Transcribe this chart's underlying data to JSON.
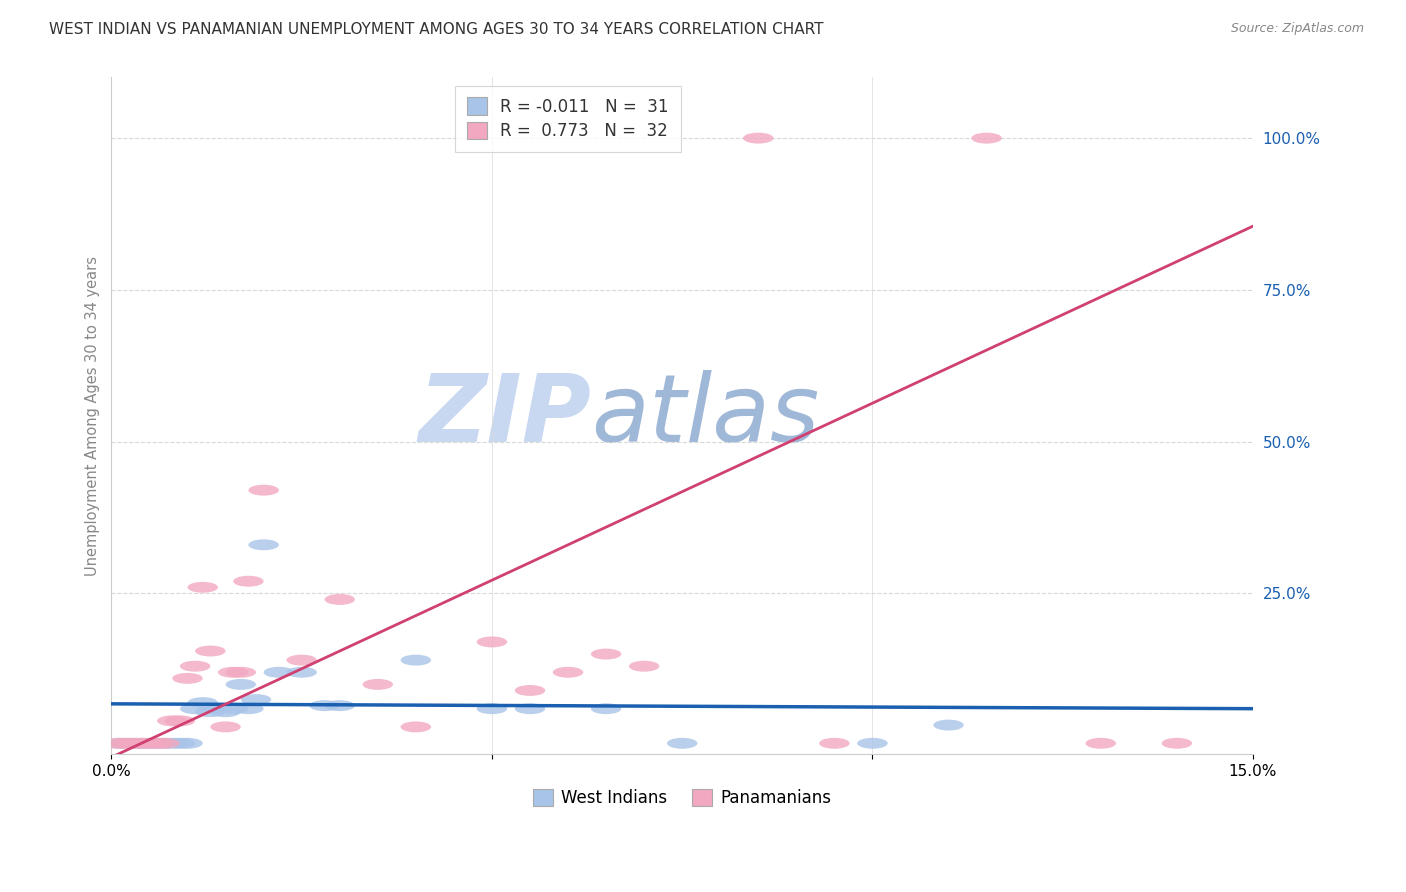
{
  "title": "WEST INDIAN VS PANAMANIAN UNEMPLOYMENT AMONG AGES 30 TO 34 YEARS CORRELATION CHART",
  "source": "Source: ZipAtlas.com",
  "ylabel": "Unemployment Among Ages 30 to 34 years",
  "xlim": [
    0,
    0.15
  ],
  "ylim": [
    -0.015,
    1.1
  ],
  "xticks": [
    0.0,
    0.05,
    0.1,
    0.15
  ],
  "xticklabels": [
    "0.0%",
    "",
    "",
    "15.0%"
  ],
  "ytick_labels_right": [
    "25.0%",
    "50.0%",
    "75.0%",
    "100.0%"
  ],
  "ytick_vals_right": [
    0.25,
    0.5,
    0.75,
    1.0
  ],
  "legend_blue_label_r": "R = -0.011",
  "legend_blue_label_n": "N =  31",
  "legend_pink_label_r": "R =  0.773",
  "legend_pink_label_n": "N =  32",
  "west_indian_color": "#a8c4e8",
  "panamanian_color": "#f2a8c0",
  "trendline_blue_color": "#1a5fb0",
  "trendline_pink_color": "#d04070",
  "background_color": "#ffffff",
  "watermark_zip_color": "#c8d8f0",
  "watermark_atlas_color": "#a0b8d8",
  "grid_color": "#d8d8d8",
  "west_indian_x": [
    0.001,
    0.002,
    0.003,
    0.004,
    0.005,
    0.006,
    0.007,
    0.008,
    0.009,
    0.01,
    0.011,
    0.012,
    0.013,
    0.014,
    0.015,
    0.016,
    0.017,
    0.018,
    0.019,
    0.02,
    0.022,
    0.025,
    0.028,
    0.03,
    0.04,
    0.05,
    0.055,
    0.065,
    0.075,
    0.1,
    0.11
  ],
  "west_indian_y": [
    0.003,
    0.003,
    0.003,
    0.003,
    0.003,
    0.003,
    0.003,
    0.003,
    0.003,
    0.003,
    0.06,
    0.07,
    0.055,
    0.06,
    0.055,
    0.06,
    0.1,
    0.06,
    0.075,
    0.33,
    0.12,
    0.12,
    0.065,
    0.065,
    0.14,
    0.06,
    0.06,
    0.06,
    0.003,
    0.003,
    0.033
  ],
  "panamanian_x": [
    0.001,
    0.002,
    0.003,
    0.004,
    0.005,
    0.006,
    0.007,
    0.008,
    0.009,
    0.01,
    0.011,
    0.012,
    0.013,
    0.015,
    0.016,
    0.017,
    0.018,
    0.02,
    0.025,
    0.03,
    0.035,
    0.04,
    0.05,
    0.055,
    0.06,
    0.065,
    0.07,
    0.085,
    0.095,
    0.115,
    0.13,
    0.14
  ],
  "panamanian_y": [
    0.003,
    0.003,
    0.003,
    0.003,
    0.003,
    0.003,
    0.003,
    0.04,
    0.04,
    0.11,
    0.13,
    0.26,
    0.155,
    0.03,
    0.12,
    0.12,
    0.27,
    0.42,
    0.14,
    0.24,
    0.1,
    0.03,
    0.17,
    0.09,
    0.12,
    0.15,
    0.13,
    1.0,
    0.003,
    1.0,
    0.003,
    0.003
  ],
  "blue_trend_x": [
    0.0,
    0.15
  ],
  "blue_trend_y": [
    0.068,
    0.06
  ],
  "pink_trend_x": [
    0.0,
    0.15
  ],
  "pink_trend_y": [
    -0.02,
    0.855
  ],
  "bottom_legend_items": [
    "West Indians",
    "Panamanians"
  ]
}
